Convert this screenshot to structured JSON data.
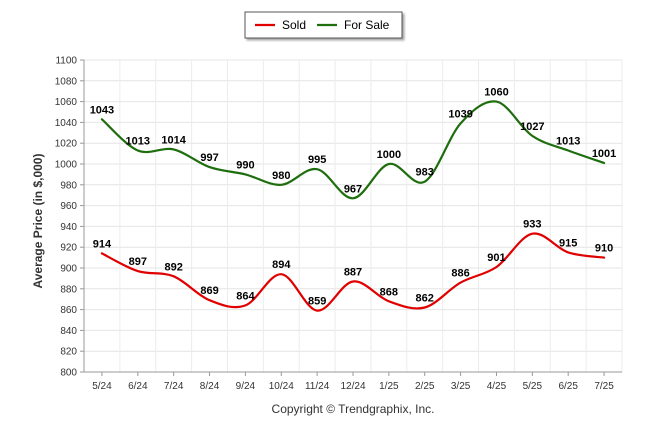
{
  "chart_data": {
    "type": "line",
    "categories": [
      "5/24",
      "6/24",
      "7/24",
      "8/24",
      "9/24",
      "10/24",
      "11/24",
      "12/24",
      "1/25",
      "2/25",
      "3/25",
      "4/25",
      "5/25",
      "6/25",
      "7/25"
    ],
    "series": [
      {
        "name": "Sold",
        "color": "#e00000",
        "values": [
          914,
          897,
          892,
          869,
          864,
          894,
          859,
          887,
          868,
          862,
          886,
          901,
          933,
          915,
          910
        ]
      },
      {
        "name": "For Sale",
        "color": "#1e6e0e",
        "values": [
          1043,
          1013,
          1014,
          997,
          990,
          980,
          995,
          967,
          1000,
          983,
          1039,
          1060,
          1027,
          1013,
          1001
        ]
      }
    ],
    "ylabel": "Average Price (in $,000)",
    "xlabel": "",
    "ylim": [
      800,
      1100
    ],
    "yticks": [
      800,
      820,
      840,
      860,
      880,
      900,
      920,
      940,
      960,
      980,
      1000,
      1020,
      1040,
      1060,
      1080,
      1100
    ],
    "grid": true,
    "legend": "top-center",
    "footer": "Copyright © Trendgraphix, Inc."
  }
}
